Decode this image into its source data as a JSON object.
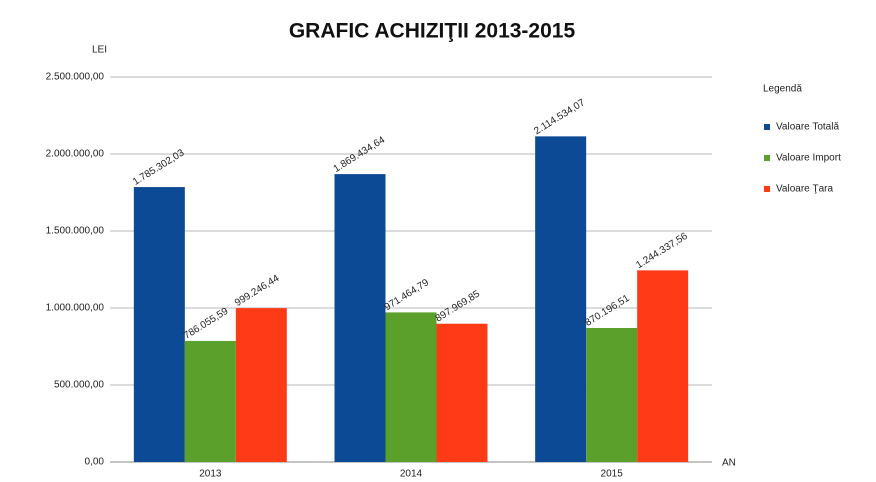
{
  "chart_data": {
    "type": "bar",
    "title": "GRAFIC ACHIZIŢII 2013-2015",
    "y_label": "LEI",
    "x_label": "AN",
    "categories": [
      "2013",
      "2014",
      "2015"
    ],
    "series": [
      {
        "name": "Valoare Totală",
        "color": "#0d4a96",
        "values": [
          1785302.03,
          1869434.64,
          2114534.07
        ],
        "value_labels": [
          "1.785.302,03",
          "1.869.434,64",
          "2.114.534,07"
        ]
      },
      {
        "name": "Valoare Import",
        "color": "#5ba02a",
        "values": [
          786055.59,
          971464.79,
          870196.51
        ],
        "value_labels": [
          "786.055,59",
          "971.464,79",
          "870.196,51"
        ]
      },
      {
        "name": "Valoare Ţara",
        "color": "#ff3a16",
        "values": [
          999246.44,
          897969.85,
          1244337.56
        ],
        "value_labels": [
          "999.246,44",
          "897.969,85",
          "1.244.337,56"
        ]
      }
    ],
    "ylim": [
      0,
      2500000
    ],
    "yticks": [
      {
        "value": 0,
        "label": "0,00"
      },
      {
        "value": 500000,
        "label": "500.000,00"
      },
      {
        "value": 1000000,
        "label": "1.000.000,00"
      },
      {
        "value": 1500000,
        "label": "1.500.000,00"
      },
      {
        "value": 2000000,
        "label": "2.000.000,00"
      },
      {
        "value": 2500000,
        "label": "2.500.000,00"
      }
    ],
    "grid": true,
    "legend_title": "Legendă",
    "legend": "right"
  }
}
